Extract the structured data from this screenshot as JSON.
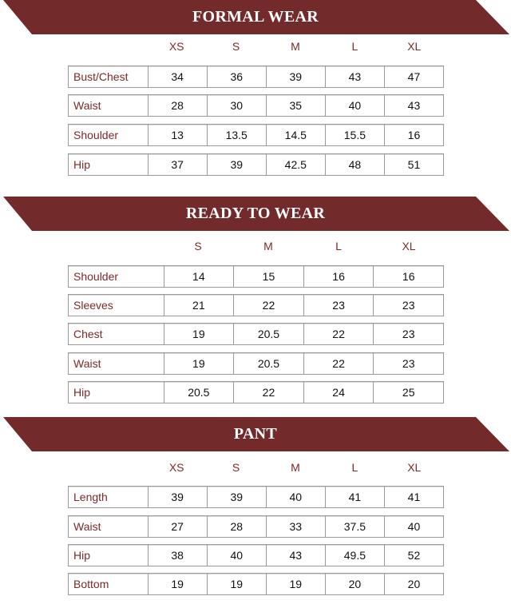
{
  "colors": {
    "banner": "#722a2b",
    "label_text": "#7a2a2a"
  },
  "sections": [
    {
      "title": "FORMAL WEAR",
      "sizes": [
        "XS",
        "S",
        "M",
        "L",
        "XL"
      ],
      "rows": [
        {
          "label": "Bust/Chest",
          "values": [
            "34",
            "36",
            "39",
            "43",
            "47"
          ]
        },
        {
          "label": "Waist",
          "values": [
            "28",
            "30",
            "35",
            "40",
            "43"
          ]
        },
        {
          "label": "Shoulder",
          "values": [
            "13",
            "13.5",
            "14.5",
            "15.5",
            "16"
          ]
        },
        {
          "label": "Hip",
          "values": [
            "37",
            "39",
            "42.5",
            "48",
            "51"
          ]
        }
      ]
    },
    {
      "title": "READY TO WEAR",
      "sizes": [
        "S",
        "M",
        "L",
        "XL"
      ],
      "rows": [
        {
          "label": "Shoulder",
          "values": [
            "14",
            "15",
            "16",
            "16"
          ]
        },
        {
          "label": "Sleeves",
          "values": [
            "21",
            "22",
            "23",
            "23"
          ]
        },
        {
          "label": "Chest",
          "values": [
            "19",
            "20.5",
            "22",
            "23"
          ]
        },
        {
          "label": "Waist",
          "values": [
            "19",
            "20.5",
            "22",
            "23"
          ]
        },
        {
          "label": "Hip",
          "values": [
            "20.5",
            "22",
            "24",
            "25"
          ]
        }
      ]
    },
    {
      "title": "PANT",
      "sizes": [
        "XS",
        "S",
        "M",
        "L",
        "XL"
      ],
      "rows": [
        {
          "label": "Length",
          "values": [
            "39",
            "39",
            "40",
            "41",
            "41"
          ]
        },
        {
          "label": "Waist",
          "values": [
            "27",
            "28",
            "33",
            "37.5",
            "40"
          ]
        },
        {
          "label": "Hip",
          "values": [
            "38",
            "40",
            "43",
            "49.5",
            "52"
          ]
        },
        {
          "label": "Bottom",
          "values": [
            "19",
            "19",
            "19",
            "20",
            "20"
          ]
        }
      ]
    }
  ]
}
